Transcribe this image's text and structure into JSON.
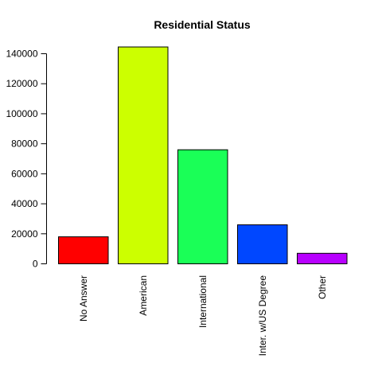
{
  "chart_data": {
    "type": "bar",
    "title": "Residential Status",
    "xlabel": "",
    "ylabel": "",
    "categories": [
      "No Answer",
      "American",
      "International",
      "Inter. w/US Degree",
      "Other"
    ],
    "values": [
      18000,
      144500,
      76000,
      26000,
      7000
    ],
    "colors": [
      "#FF0000",
      "#CCFF00",
      "#1AFF57",
      "#0047FF",
      "#B800FF"
    ],
    "ylim": [
      0,
      140000
    ],
    "yticks": [
      0,
      20000,
      40000,
      60000,
      80000,
      100000,
      120000,
      140000
    ],
    "ytick_labels": [
      "0",
      "20000",
      "40000",
      "60000",
      "80000",
      "100000",
      "120000",
      "140000"
    ],
    "grid": false,
    "legend": "none"
  }
}
